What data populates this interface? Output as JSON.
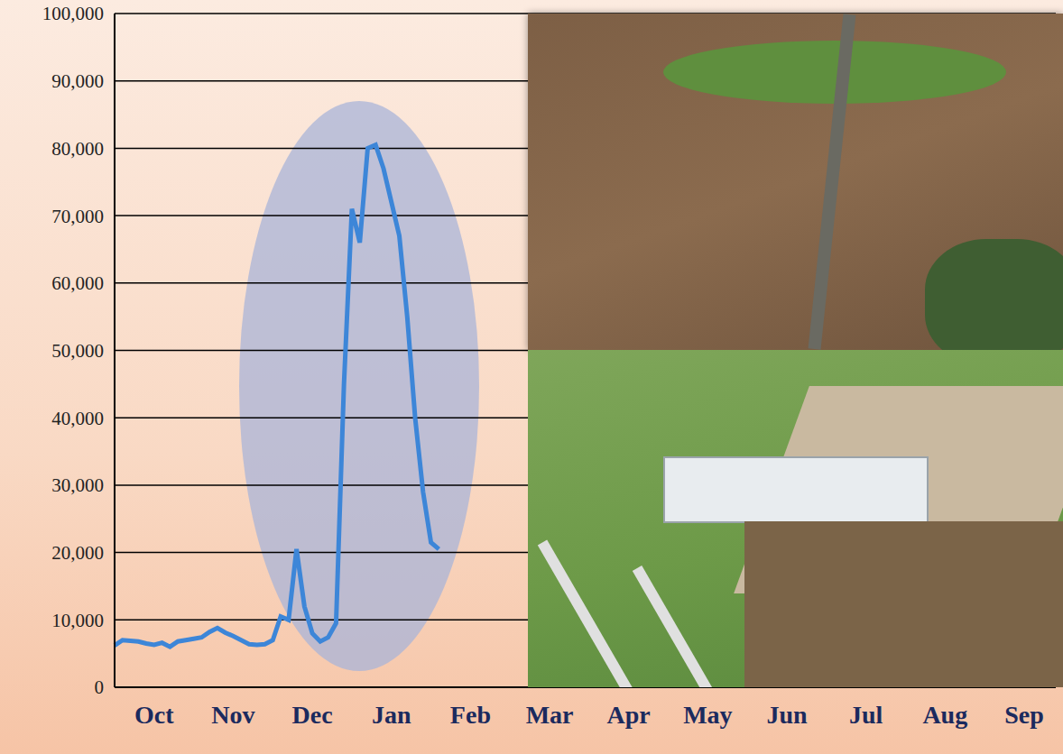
{
  "chart_data": {
    "type": "line",
    "categories": [
      null,
      null,
      null,
      null,
      null,
      "Oct",
      null,
      null,
      null,
      null,
      null,
      null,
      null,
      null,
      null,
      "Nov",
      null,
      null,
      null,
      null,
      null,
      null,
      null,
      null,
      null,
      "Dec",
      null,
      null,
      null,
      null,
      null,
      null,
      null,
      null,
      null,
      "Jan",
      null,
      null,
      null,
      null,
      null,
      null,
      null,
      null,
      null,
      "Feb",
      null,
      null,
      null,
      null,
      null,
      null,
      null,
      null,
      null,
      "Mar",
      null,
      null,
      null,
      null,
      null,
      null,
      null,
      null,
      null,
      "Apr",
      null,
      null,
      null,
      null,
      null,
      null,
      null,
      null,
      null,
      "May",
      null,
      null,
      null,
      null,
      null,
      null,
      null,
      null,
      null,
      "Jun",
      null,
      null,
      null,
      null,
      null,
      null,
      null,
      null,
      null,
      "Jul",
      null,
      null,
      null,
      null,
      null,
      null,
      null,
      null,
      null,
      "Aug",
      null,
      null,
      null,
      null,
      null,
      null,
      null,
      null,
      null,
      "Sep",
      null,
      null,
      null,
      null
    ],
    "values": [
      6200,
      7000,
      6900,
      6800,
      6500,
      6300,
      6600,
      6000,
      6800,
      7000,
      7200,
      7400,
      8200,
      8800,
      8100,
      7600,
      7000,
      6400,
      6300,
      6400,
      7000,
      10500,
      10000,
      20500,
      12000,
      8000,
      6800,
      7400,
      9500,
      45000,
      71000,
      66000,
      80000,
      80500,
      77000,
      72000,
      67000,
      55000,
      40000,
      29000,
      21500,
      20500,
      null,
      null,
      null,
      null,
      null,
      null,
      null,
      null,
      null,
      null,
      null,
      null,
      null,
      null,
      null,
      null,
      null,
      null,
      null,
      null,
      null,
      null,
      null,
      null,
      null,
      null,
      null,
      null,
      null,
      null,
      null,
      null,
      null,
      null,
      null,
      null,
      null,
      null,
      null,
      null,
      null,
      null,
      null,
      null,
      null,
      null,
      null,
      null,
      null,
      null,
      null,
      null,
      null,
      null,
      null,
      null,
      null,
      null,
      null,
      null,
      null,
      null,
      null,
      null,
      null,
      null,
      null,
      null,
      null,
      null,
      null,
      null,
      null,
      null,
      null,
      null,
      null,
      null
    ],
    "color": "#3d86d8",
    "ylim": [
      0,
      100000
    ],
    "yticks": [
      0,
      {
        "value": 10000,
        "label": "10,000"
      },
      {
        "value": 20000,
        "label": "20,000"
      },
      {
        "value": 30000,
        "label": "30,000"
      },
      {
        "value": 40000,
        "label": "40,000"
      },
      {
        "value": 50000,
        "label": "50,000"
      },
      {
        "value": 60000,
        "label": "60,000"
      },
      {
        "value": 70000,
        "label": "70,000"
      },
      {
        "value": 80000,
        "label": "80,000"
      },
      {
        "value": 90000,
        "label": "90,000"
      },
      {
        "value": 100000,
        "label": "100,000"
      }
    ],
    "grid": true
  }
}
